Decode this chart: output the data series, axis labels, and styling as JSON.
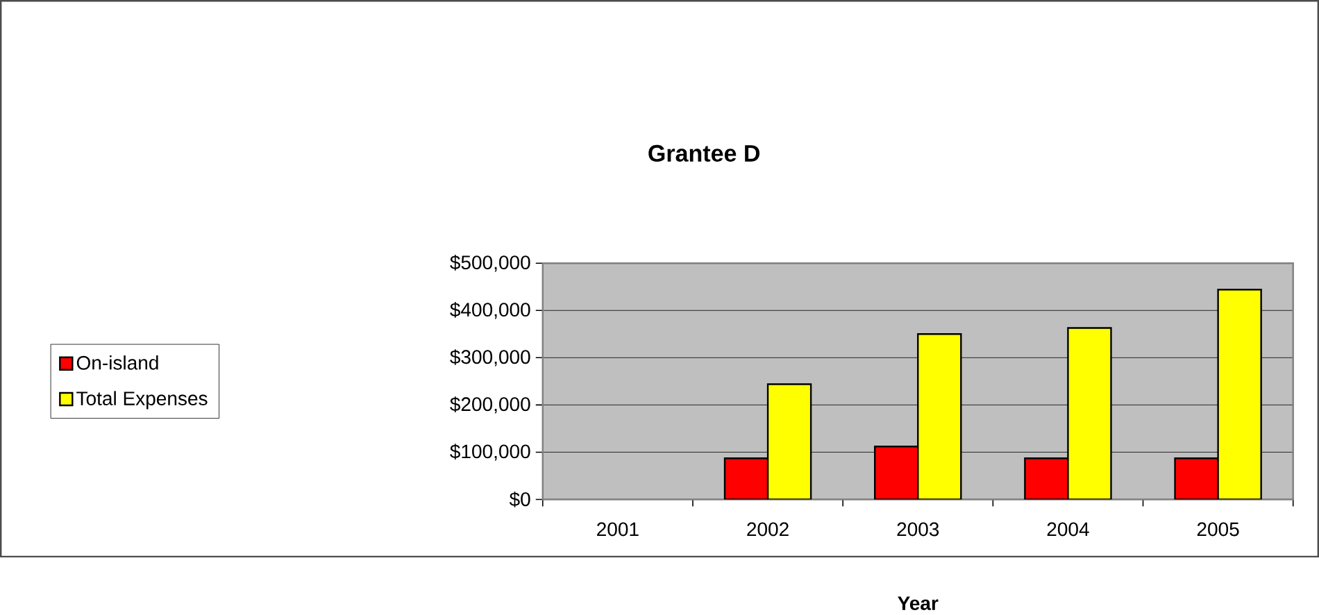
{
  "chart_data": {
    "type": "bar",
    "title": "Grantee D",
    "xlabel": "Year",
    "categories": [
      "2001",
      "2002",
      "2003",
      "2004",
      "2005"
    ],
    "series": [
      {
        "name": "On-island",
        "color": "#ff0000",
        "values": [
          null,
          87000,
          112000,
          87000,
          87000
        ]
      },
      {
        "name": "Total Expenses",
        "color": "#ffff00",
        "values": [
          null,
          244000,
          350000,
          363000,
          444000
        ]
      }
    ],
    "ylim": [
      0,
      500000
    ],
    "yticks": [
      {
        "value": 0,
        "label": "$0"
      },
      {
        "value": 100000,
        "label": "$100,000"
      },
      {
        "value": 200000,
        "label": "$200,000"
      },
      {
        "value": 300000,
        "label": "$300,000"
      },
      {
        "value": 400000,
        "label": "$400,000"
      },
      {
        "value": 500000,
        "label": "$500,000"
      }
    ],
    "grid": "y",
    "legend": "left"
  }
}
